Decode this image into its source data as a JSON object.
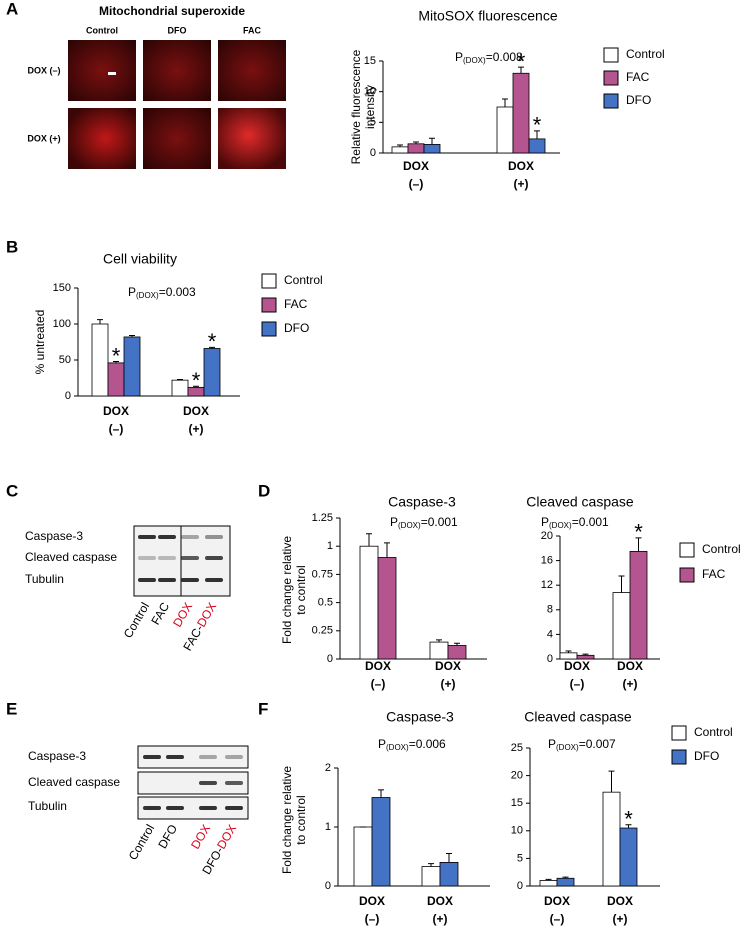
{
  "panels": [
    "A",
    "B",
    "C",
    "D",
    "E",
    "F"
  ],
  "micrograph": {
    "title": "Mitochondrial superoxide",
    "columns": [
      "Control",
      "DFO",
      "FAC"
    ],
    "rows": [
      "DOX (–)",
      "DOX (+)"
    ]
  },
  "blots": [
    {
      "rows": [
        "Caspase-3",
        "Cleaved caspase",
        "Tubulin"
      ],
      "lanes": [
        {
          "parts": [
            "Control"
          ],
          "colors": [
            "#000000"
          ]
        },
        {
          "parts": [
            "FAC"
          ],
          "colors": [
            "#000000"
          ]
        },
        {
          "parts": [
            "DOX"
          ],
          "colors": [
            "#e0001b"
          ]
        },
        {
          "parts": [
            "FAC-",
            "DOX"
          ],
          "colors": [
            "#000000",
            "#e0001b"
          ]
        }
      ]
    },
    {
      "rows": [
        "Caspase-3",
        "Cleaved caspase",
        "Tubulin"
      ],
      "lanes": [
        {
          "parts": [
            "Control"
          ],
          "colors": [
            "#000000"
          ]
        },
        {
          "parts": [
            "DFO"
          ],
          "colors": [
            "#000000"
          ]
        },
        {
          "parts": [
            "DOX"
          ],
          "colors": [
            "#e0001b"
          ]
        },
        {
          "parts": [
            "DFO-",
            "DOX"
          ],
          "colors": [
            "#000000",
            "#e0001b"
          ]
        }
      ]
    }
  ],
  "chart_data": [
    {
      "type": "bar",
      "title": "MitoSOX fluorescence",
      "ylabel": [
        "Relative fluorescence",
        "intensity"
      ],
      "annotation": [
        "P",
        "(DOX)",
        "=0.008"
      ],
      "categories": [
        [
          "DOX",
          "(–)"
        ],
        [
          "DOX",
          "(+)"
        ]
      ],
      "category_colors": [
        "#000000",
        "#e0001b"
      ],
      "series": [
        {
          "name": "Control",
          "color": "#ffffff",
          "values": [
            1.0,
            7.5
          ],
          "errors": [
            0.3,
            1.3
          ],
          "stars": [
            null,
            null
          ]
        },
        {
          "name": "FAC",
          "color": "#b5558f",
          "values": [
            1.5,
            13
          ],
          "errors": [
            0.3,
            1.0
          ],
          "stars": [
            null,
            "*"
          ]
        },
        {
          "name": "DFO",
          "color": "#4472c4",
          "values": [
            1.4,
            2.3
          ],
          "errors": [
            1.0,
            1.3
          ],
          "stars": [
            null,
            "*"
          ]
        }
      ],
      "ylim": [
        0,
        15
      ],
      "yticks": [
        0,
        5,
        10,
        15
      ],
      "legend": true
    },
    {
      "type": "bar",
      "title": "Cell viability",
      "ylabel": [
        "% untreated"
      ],
      "annotation": [
        "P",
        "(DOX)",
        "=0.003"
      ],
      "categories": [
        [
          "DOX",
          "(–)"
        ],
        [
          "DOX",
          "(+)"
        ]
      ],
      "category_colors": [
        "#000000",
        "#e0001b"
      ],
      "series": [
        {
          "name": "Control",
          "color": "#ffffff",
          "values": [
            100,
            22
          ],
          "errors": [
            6,
            1
          ],
          "stars": [
            null,
            null
          ]
        },
        {
          "name": "FAC",
          "color": "#b5558f",
          "values": [
            46,
            12
          ],
          "errors": [
            2,
            1.5
          ],
          "stars": [
            "*",
            "*"
          ]
        },
        {
          "name": "DFO",
          "color": "#4472c4",
          "values": [
            82,
            66
          ],
          "errors": [
            2,
            1.5
          ],
          "stars": [
            null,
            "*"
          ]
        }
      ],
      "ylim": [
        0,
        150
      ],
      "yticks": [
        0,
        50,
        100,
        150
      ],
      "legend": true
    },
    {
      "type": "bar",
      "title": "Caspase-3",
      "ylabel": [
        "Fold change relative",
        "to control"
      ],
      "annotation": [
        "P",
        "(DOX)",
        "=0.001"
      ],
      "categories": [
        [
          "DOX",
          "(–)"
        ],
        [
          "DOX",
          "(+)"
        ]
      ],
      "category_colors": [
        "#000000",
        "#e0001b"
      ],
      "series": [
        {
          "name": "Control",
          "color": "#ffffff",
          "values": [
            1.0,
            0.15
          ],
          "errors": [
            0.11,
            0.02
          ],
          "stars": [
            null,
            null
          ]
        },
        {
          "name": "FAC",
          "color": "#b5558f",
          "values": [
            0.9,
            0.12
          ],
          "errors": [
            0.13,
            0.02
          ],
          "stars": [
            null,
            null
          ]
        }
      ],
      "ylim": [
        0,
        1.25
      ],
      "yticks": [
        0,
        0.25,
        0.5,
        0.75,
        1,
        1.25
      ],
      "legend": false
    },
    {
      "type": "bar",
      "title": "Cleaved caspase",
      "annotation": [
        "P",
        "(DOX)",
        "=0.001"
      ],
      "categories": [
        [
          "DOX",
          "(–)"
        ],
        [
          "DOX",
          "(+)"
        ]
      ],
      "category_colors": [
        "#000000",
        "#e0001b"
      ],
      "series": [
        {
          "name": "Control",
          "color": "#ffffff",
          "values": [
            1.0,
            10.8
          ],
          "errors": [
            0.3,
            2.7
          ],
          "stars": [
            null,
            null
          ]
        },
        {
          "name": "FAC",
          "color": "#b5558f",
          "values": [
            0.6,
            17.5
          ],
          "errors": [
            0.2,
            2.2
          ],
          "stars": [
            null,
            "*"
          ]
        }
      ],
      "ylim": [
        0,
        20
      ],
      "yticks": [
        0,
        4,
        8,
        12,
        16,
        20
      ],
      "legend": true
    },
    {
      "type": "bar",
      "title": "Caspase-3",
      "ylabel": [
        "Fold change relative",
        "to control"
      ],
      "annotation": [
        "P",
        "(DOX)",
        "=0.006"
      ],
      "categories": [
        [
          "DOX",
          "(–)"
        ],
        [
          "DOX",
          "(+)"
        ]
      ],
      "category_colors": [
        "#000000",
        "#e0001b"
      ],
      "series": [
        {
          "name": "Control",
          "color": "#ffffff",
          "values": [
            1.0,
            0.33
          ],
          "errors": [
            0,
            0.05
          ],
          "stars": [
            null,
            null
          ]
        },
        {
          "name": "DFO",
          "color": "#4472c4",
          "values": [
            1.5,
            0.4
          ],
          "errors": [
            0.13,
            0.15
          ],
          "stars": [
            null,
            null
          ]
        }
      ],
      "ylim": [
        0,
        2
      ],
      "yticks": [
        0,
        1,
        2
      ],
      "legend": false
    },
    {
      "type": "bar",
      "title": "Cleaved caspase",
      "annotation": [
        "P",
        "(DOX)",
        "=0.007"
      ],
      "categories": [
        [
          "DOX",
          "(–)"
        ],
        [
          "DOX",
          "(+)"
        ]
      ],
      "category_colors": [
        "#000000",
        "#e0001b"
      ],
      "series": [
        {
          "name": "Control",
          "color": "#ffffff",
          "values": [
            1.0,
            17
          ],
          "errors": [
            0.2,
            3.8
          ],
          "stars": [
            null,
            null
          ]
        },
        {
          "name": "DFO",
          "color": "#4472c4",
          "values": [
            1.4,
            10.5
          ],
          "errors": [
            0.2,
            0.6
          ],
          "stars": [
            null,
            "*"
          ]
        }
      ],
      "ylim": [
        0,
        25
      ],
      "yticks": [
        0,
        5,
        10,
        15,
        20,
        25
      ],
      "legend": true
    }
  ]
}
